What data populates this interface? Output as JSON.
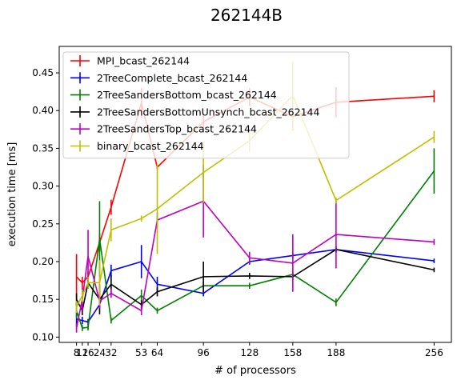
{
  "chart_data": {
    "type": "line",
    "title": "262144B",
    "xlabel": "# of processors",
    "ylabel": "execution time [ms]",
    "xlim": [
      -4,
      268
    ],
    "ylim": [
      0.093,
      0.485
    ],
    "x_ticks": [
      8,
      12,
      16,
      24,
      32,
      53,
      64,
      96,
      128,
      158,
      188,
      256
    ],
    "x_tick_labels": [
      "8",
      "12",
      "16",
      "24",
      "32",
      "53",
      "64",
      "96",
      "128",
      "158",
      "188",
      "256"
    ],
    "y_ticks": [
      0.1,
      0.15,
      0.2,
      0.25,
      0.3,
      0.35,
      0.4,
      0.45
    ],
    "y_tick_labels": [
      "0.10",
      "0.15",
      "0.20",
      "0.25",
      "0.30",
      "0.35",
      "0.40",
      "0.45"
    ],
    "grid": false,
    "legend_position": "top-left",
    "series": [
      {
        "name": "MPI_bcast_262144",
        "color": "#ff0000",
        "x": [
          8,
          12,
          16,
          24,
          32,
          53,
          64,
          96,
          128,
          158,
          188,
          256
        ],
        "y": [
          0.18,
          0.172,
          0.18,
          0.225,
          0.272,
          0.41,
          0.325,
          0.385,
          0.418,
          0.392,
          0.411,
          0.419
        ],
        "yerr": [
          0.03,
          0.008,
          0.007,
          0.012,
          0.01,
          0.02,
          0.003,
          0.012,
          0.012,
          0.018,
          0.02,
          0.008
        ]
      },
      {
        "name": "2TreeComplete_bcast_262144",
        "color": "#0000ff",
        "x": [
          8,
          12,
          16,
          24,
          32,
          53,
          64,
          96,
          128,
          158,
          188,
          256
        ],
        "y": [
          0.124,
          0.122,
          0.12,
          0.143,
          0.188,
          0.2,
          0.17,
          0.158,
          0.2,
          0.208,
          0.216,
          0.201
        ],
        "yerr": [
          0.01,
          0.005,
          0.004,
          0.006,
          0.008,
          0.022,
          0.01,
          0.004,
          0.004,
          0.004,
          0.004,
          0.003
        ]
      },
      {
        "name": "2TreeSandersBottom_bcast_262144",
        "color": "#008000",
        "x": [
          8,
          12,
          16,
          24,
          32,
          53,
          64,
          96,
          128,
          158,
          188,
          256
        ],
        "y": [
          0.135,
          0.112,
          0.113,
          0.23,
          0.122,
          0.155,
          0.135,
          0.168,
          0.168,
          0.183,
          0.146,
          0.32
        ],
        "yerr": [
          0.01,
          0.004,
          0.004,
          0.05,
          0.004,
          0.008,
          0.004,
          0.004,
          0.004,
          0.004,
          0.005,
          0.03
        ]
      },
      {
        "name": "2TreeSandersBottomUnsynch_bcast_262144",
        "color": "#000000",
        "x": [
          8,
          12,
          16,
          24,
          32,
          53,
          64,
          96,
          128,
          158,
          188,
          256
        ],
        "y": [
          0.15,
          0.135,
          0.172,
          0.15,
          0.17,
          0.143,
          0.16,
          0.18,
          0.181,
          0.18,
          0.216,
          0.189
        ],
        "yerr": [
          0.008,
          0.006,
          0.008,
          0.02,
          0.012,
          0.006,
          0.006,
          0.02,
          0.004,
          0.004,
          0.004,
          0.003
        ]
      },
      {
        "name": "2TreeSandersTop_bcast_262144",
        "color": "#bf00bf",
        "x": [
          8,
          12,
          16,
          24,
          32,
          53,
          64,
          96,
          128,
          158,
          188,
          256
        ],
        "y": [
          0.112,
          0.15,
          0.207,
          0.148,
          0.158,
          0.135,
          0.255,
          0.28,
          0.205,
          0.198,
          0.236,
          0.226
        ],
        "yerr": [
          0.006,
          0.015,
          0.035,
          0.01,
          0.006,
          0.006,
          0.01,
          0.048,
          0.008,
          0.038,
          0.045,
          0.004
        ]
      },
      {
        "name": "binary_bcast_262144",
        "color": "#bfbf00",
        "x": [
          8,
          12,
          16,
          24,
          32,
          53,
          64,
          96,
          128,
          158,
          188,
          256
        ],
        "y": [
          0.14,
          0.155,
          0.172,
          0.172,
          0.242,
          0.257,
          0.27,
          0.318,
          0.36,
          0.42,
          0.281,
          0.365
        ],
        "yerr": [
          0.008,
          0.008,
          0.008,
          0.03,
          0.015,
          0.004,
          0.06,
          0.04,
          0.015,
          0.045,
          0.004,
          0.008
        ]
      }
    ]
  }
}
